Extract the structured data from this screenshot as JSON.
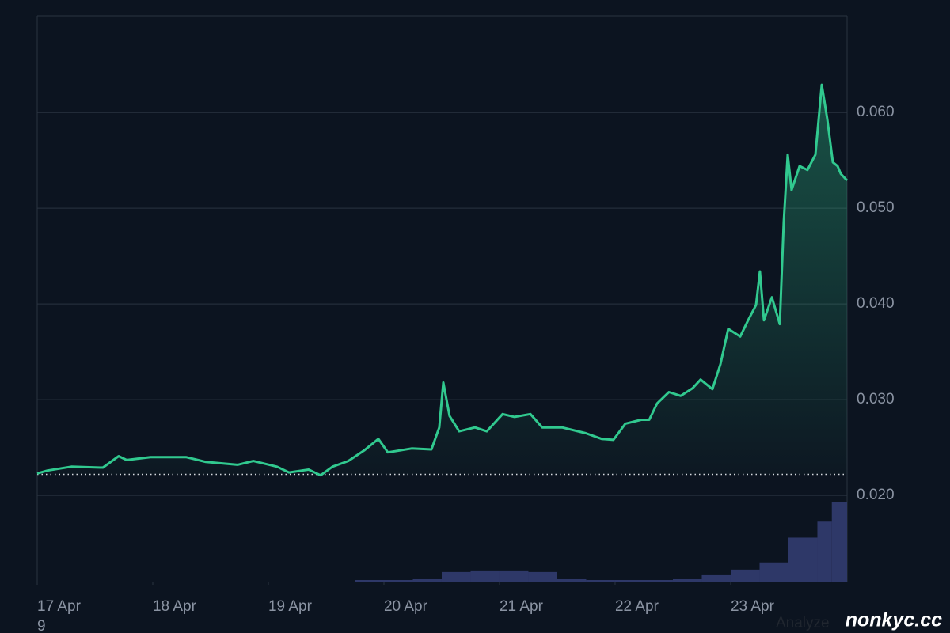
{
  "chart_data": {
    "type": "line",
    "series": [
      {
        "name": "price",
        "color": "#31c98f",
        "x": [
          0,
          0.089,
          0.295,
          0.568,
          0.705,
          0.774,
          0.979,
          1.288,
          1.459,
          1.733,
          1.87,
          2.075,
          2.178,
          2.349,
          2.452,
          2.555,
          2.692,
          2.829,
          2.952,
          3.034,
          3.24,
          3.411,
          3.479,
          3.514,
          3.568,
          3.651,
          3.788,
          3.89,
          4.027,
          4.13,
          4.267,
          4.37,
          4.541,
          4.747,
          4.884,
          4.986,
          5.089,
          5.226,
          5.295,
          5.363,
          5.466,
          5.568,
          5.671,
          5.74,
          5.842,
          5.911,
          5.979,
          6.082,
          6.151,
          6.219,
          6.253,
          6.288,
          6.356,
          6.425,
          6.459,
          6.493,
          6.527,
          6.596,
          6.664,
          6.733,
          6.788,
          6.836,
          6.884,
          6.925,
          6.952,
          7.007
        ],
        "values": [
          0.0223,
          0.0226,
          0.023,
          0.0229,
          0.0241,
          0.0237,
          0.024,
          0.024,
          0.0235,
          0.0232,
          0.0236,
          0.023,
          0.0224,
          0.0227,
          0.0221,
          0.023,
          0.0236,
          0.0247,
          0.0259,
          0.0245,
          0.0249,
          0.0248,
          0.0271,
          0.0318,
          0.0283,
          0.0267,
          0.0271,
          0.0267,
          0.0285,
          0.0282,
          0.0285,
          0.0271,
          0.0271,
          0.0265,
          0.0259,
          0.0258,
          0.0275,
          0.0279,
          0.0279,
          0.0296,
          0.0308,
          0.0304,
          0.0312,
          0.0321,
          0.0311,
          0.0337,
          0.0374,
          0.0366,
          0.0383,
          0.0399,
          0.0434,
          0.0383,
          0.0407,
          0.0379,
          0.0486,
          0.0556,
          0.0519,
          0.0544,
          0.054,
          0.0556,
          0.0629,
          0.0593,
          0.0548,
          0.0544,
          0.0536,
          0.0529
        ]
      }
    ],
    "baseline": 0.0222,
    "volume": {
      "color": "#2e3868",
      "bins": [
        2.75,
        3,
        3.25,
        3.5,
        3.75,
        4,
        4.25,
        4.5,
        4.75,
        5,
        5.25,
        5.5,
        5.75,
        6,
        6.25,
        6.5,
        6.75,
        6.875,
        7.007
      ],
      "values": [
        2,
        2,
        3,
        12,
        13,
        13,
        12,
        3,
        2,
        2,
        2,
        3,
        8,
        15,
        24,
        55,
        75,
        100
      ],
      "vlim": [
        0,
        100
      ]
    },
    "xlim": [
      0,
      7.007
    ],
    "xticks": [
      {
        "value": 0,
        "label": "17 Apr"
      },
      {
        "value": 1,
        "label": "18 Apr"
      },
      {
        "value": 2,
        "label": "19 Apr"
      },
      {
        "value": 3,
        "label": "20 Apr"
      },
      {
        "value": 4,
        "label": "21 Apr"
      },
      {
        "value": 5,
        "label": "22 Apr"
      },
      {
        "value": 6,
        "label": "23 Apr"
      }
    ],
    "ylim": [
      0.011,
      0.0701
    ],
    "yticks": [
      {
        "value": 0.02,
        "label": "0.020"
      },
      {
        "value": 0.03,
        "label": "0.030"
      },
      {
        "value": 0.04,
        "label": "0.040"
      },
      {
        "value": 0.05,
        "label": "0.050"
      },
      {
        "value": 0.06,
        "label": "0.060"
      }
    ],
    "grid": true,
    "annotations": [
      "9",
      "Analyze",
      "nonkyc.cc"
    ]
  }
}
